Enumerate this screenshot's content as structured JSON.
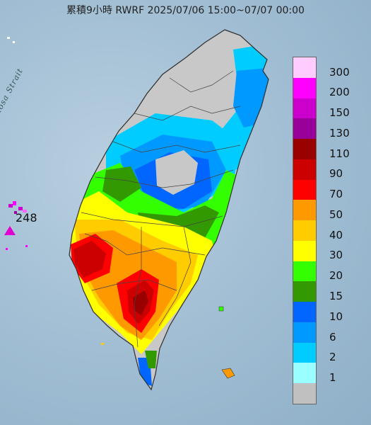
{
  "title": "累積9小時 RWRF 2025/07/06 15:00~07/07 00:00",
  "strait_label": "Formosa Strait",
  "max_value": "248",
  "legend": [
    {
      "label": "300",
      "color": "#ffccff"
    },
    {
      "label": "200",
      "color": "#ff00ff"
    },
    {
      "label": "150",
      "color": "#cc00cc"
    },
    {
      "label": "130",
      "color": "#990099"
    },
    {
      "label": "110",
      "color": "#990000"
    },
    {
      "label": "90",
      "color": "#cc0000"
    },
    {
      "label": "70",
      "color": "#ff0000"
    },
    {
      "label": "50",
      "color": "#ff9900"
    },
    {
      "label": "40",
      "color": "#ffcc00"
    },
    {
      "label": "30",
      "color": "#ffff00"
    },
    {
      "label": "20",
      "color": "#33ff00"
    },
    {
      "label": "15",
      "color": "#339900"
    },
    {
      "label": "10",
      "color": "#0066ff"
    },
    {
      "label": "6",
      "color": "#0099ff"
    },
    {
      "label": "2",
      "color": "#00ccff"
    },
    {
      "label": "1",
      "color": "#99ffff"
    },
    {
      "label": "",
      "color": "#c0c0c0"
    }
  ]
}
